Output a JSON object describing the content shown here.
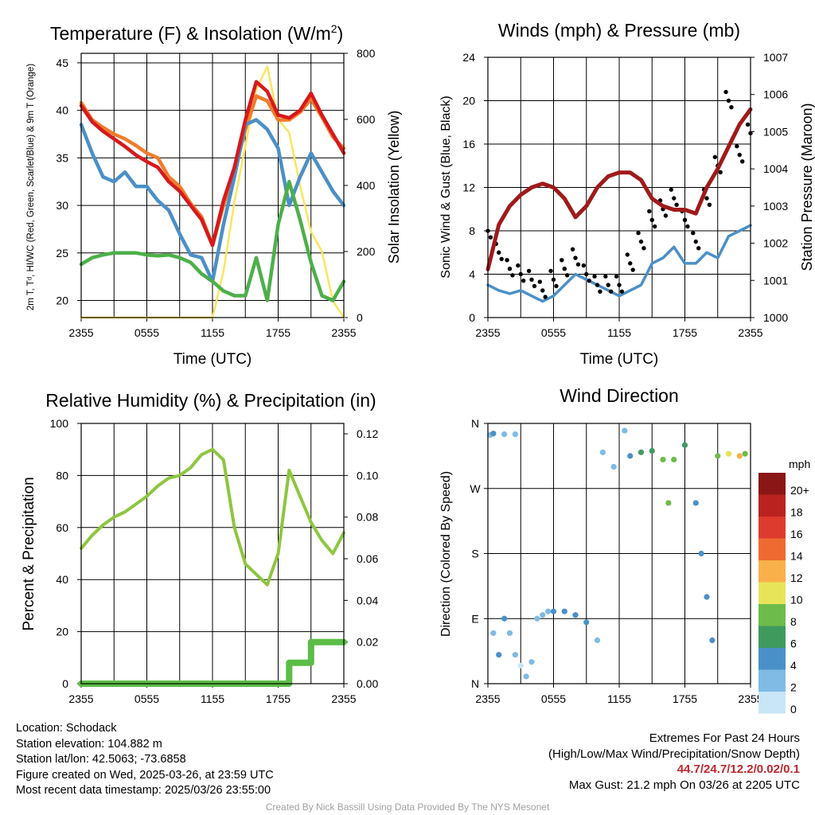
{
  "panels": {
    "temperature": {
      "title": "Temperature (F) & Insolation (W/m",
      "title_sup": "2",
      "title_close": ")",
      "ylabel_left": "2m T, Tᵈ, HI/WC (Red, Green, Scarlet/Blue) & 9m T (Orange)",
      "ylabel_right": "Solar Insolation (Yellow)",
      "xlabel": "Time (UTC)"
    },
    "winds": {
      "title": "Winds (mph) & Pressure (mb)",
      "ylabel_left": "Sonic Wind & Gust (Blue, Black)",
      "ylabel_right": "Station Pressure (Maroon)",
      "xlabel": "Time (UTC)"
    },
    "humidity": {
      "title": "Relative Humidity (%) & Precipitation (in)",
      "ylabel_left": "Percent & Precipitation"
    },
    "direction": {
      "title": "Wind Direction",
      "ylabel_left": "Direction (Colored By Speed)",
      "legend_title": "mph"
    }
  },
  "colors": {
    "temp_2m": "#d7191c",
    "temp_9m": "#f07c2a",
    "dewpoint": "#4daf4a",
    "heat_index_wind_chill": "#4a90c8",
    "solar": "#fde55c",
    "wind": "#4a90c8",
    "gust": "#000000",
    "pressure": "#a01a1a",
    "humidity": "#8dc63f",
    "precipitation": "#5bbd46"
  },
  "footer": {
    "location": "Location: Schodack",
    "elevation": "Station elevation: 104.882 m",
    "latlon": "Station lat/lon: 42.5063; -73.6858",
    "created": "Figure created on Wed, 2025-03-26, at 23:59 UTC",
    "recent": "Most recent data timestamp: 2025/03/26 23:55:00",
    "extremes_title": "Extremes For Past 24 Hours",
    "extremes_desc": "(High/Low/Max Wind/Precipitation/Snow Depth)",
    "extremes_values": "44.7/24.7/12.2/0.02/0.1",
    "max_gust": "Max Gust: 21.2 mph On 03/26 at 2205 UTC",
    "credit": "Created By Nick Bassill Using Data Provided By The NYS Mesonet"
  },
  "chart_data": [
    {
      "type": "line",
      "title": "Temperature (F) & Insolation (W/m2)",
      "xlabel": "Time (UTC)",
      "ylabel": "2m T, Td, HI/WC (Red, Green, Scarlet/Blue) & 9m T (Orange)",
      "ylabel_right": "Solar Insolation (Yellow)",
      "x_ticks": [
        "2355",
        "0555",
        "1155",
        "1755",
        "2355"
      ],
      "x_hours": [
        0,
        1,
        2,
        3,
        4,
        5,
        6,
        7,
        8,
        9,
        10,
        11,
        12,
        13,
        14,
        15,
        16,
        17,
        18,
        19,
        20,
        21,
        22,
        23,
        24
      ],
      "ylim": [
        18.2,
        46
      ],
      "y_ticks": [
        20,
        25,
        30,
        35,
        40,
        45
      ],
      "ylim_right": [
        0,
        800
      ],
      "y_ticks_right": [
        0,
        200,
        400,
        600,
        800
      ],
      "grid": true,
      "series": [
        {
          "name": "2m T",
          "axis": "left",
          "values": [
            40.5,
            38.8,
            37.8,
            37.0,
            36.2,
            35.3,
            34.6,
            34.0,
            32.5,
            31.5,
            30.0,
            28.5,
            25.8,
            30.5,
            34.0,
            39.0,
            43.0,
            42.0,
            39.5,
            39.2,
            40.0,
            41.8,
            39.5,
            37.5,
            35.5
          ]
        },
        {
          "name": "9m T",
          "axis": "left",
          "values": [
            40.8,
            39.0,
            38.2,
            37.5,
            37.0,
            36.3,
            35.5,
            35.0,
            33.0,
            32.0,
            30.2,
            28.8,
            25.8,
            30.0,
            33.5,
            38.0,
            41.5,
            41.0,
            39.0,
            39.0,
            39.8,
            41.2,
            39.3,
            37.2,
            36.0
          ]
        },
        {
          "name": "Td",
          "axis": "left",
          "values": [
            23.8,
            24.5,
            24.8,
            25.0,
            25.0,
            25.0,
            24.8,
            24.7,
            24.8,
            24.5,
            24.0,
            22.8,
            22.0,
            21.0,
            20.5,
            20.5,
            24.5,
            20.0,
            28.0,
            32.5,
            28.5,
            24.0,
            20.5,
            20.0,
            22.0
          ]
        },
        {
          "name": "HI/WC",
          "axis": "left",
          "values": [
            38.5,
            35.5,
            33.0,
            32.5,
            33.5,
            32.0,
            32.0,
            30.5,
            29.5,
            27.0,
            24.8,
            24.5,
            22.0,
            28.0,
            33.0,
            38.5,
            39.0,
            38.0,
            36.0,
            30.0,
            33.0,
            35.5,
            33.5,
            31.5,
            30.0
          ]
        },
        {
          "name": "Solar Insolation",
          "axis": "right",
          "values": [
            0,
            0,
            0,
            0,
            0,
            0,
            0,
            0,
            0,
            0,
            0,
            0,
            0,
            140,
            350,
            520,
            690,
            760,
            600,
            560,
            400,
            260,
            200,
            50,
            0
          ]
        }
      ]
    },
    {
      "type": "line",
      "title": "Winds (mph) & Pressure (mb)",
      "xlabel": "Time (UTC)",
      "ylabel": "Sonic Wind & Gust (Blue, Black)",
      "ylabel_right": "Station Pressure (Maroon)",
      "x_ticks": [
        "2355",
        "0555",
        "1155",
        "1755",
        "2355"
      ],
      "x_hours": [
        0,
        1,
        2,
        3,
        4,
        5,
        6,
        7,
        8,
        9,
        10,
        11,
        12,
        13,
        14,
        15,
        16,
        17,
        18,
        19,
        20,
        21,
        22,
        23,
        24
      ],
      "ylim": [
        0,
        24
      ],
      "y_ticks": [
        0,
        4,
        8,
        12,
        16,
        20,
        24
      ],
      "ylim_right": [
        1000,
        1007
      ],
      "y_ticks_right": [
        1000,
        1001,
        1002,
        1003,
        1004,
        1005,
        1006,
        1007
      ],
      "grid": true,
      "series": [
        {
          "name": "Sonic Wind",
          "axis": "left",
          "values": [
            3.0,
            2.5,
            2.2,
            2.5,
            2.0,
            1.5,
            2.0,
            3.0,
            4.0,
            3.5,
            3.0,
            2.5,
            2.0,
            2.5,
            3.0,
            5.0,
            5.5,
            6.5,
            5.0,
            5.0,
            6.0,
            5.5,
            7.5,
            8.0,
            8.5
          ]
        },
        {
          "name": "Gust",
          "axis": "left",
          "values": [
            8.0,
            6.0,
            4.5,
            4.0,
            3.5,
            2.5,
            3.5,
            4.5,
            5.5,
            4.0,
            3.0,
            3.0,
            3.0,
            5.0,
            7.0,
            9.0,
            10.0,
            11.0,
            9.0,
            7.0,
            11.0,
            14.0,
            20.0,
            15.0,
            17.0
          ]
        },
        {
          "name": "Station Pressure",
          "axis": "right",
          "values": [
            1001.3,
            1002.5,
            1003.0,
            1003.3,
            1003.5,
            1003.6,
            1003.5,
            1003.2,
            1002.7,
            1003.0,
            1003.5,
            1003.8,
            1003.9,
            1003.9,
            1003.7,
            1003.2,
            1003.0,
            1002.9,
            1002.9,
            1002.8,
            1003.5,
            1004.0,
            1004.6,
            1005.2,
            1005.6
          ]
        }
      ]
    },
    {
      "type": "line",
      "title": "Relative Humidity (%) & Precipitation (in)",
      "ylabel": "Percent & Precipitation",
      "x_ticks": [
        "2355",
        "0555",
        "1155",
        "1755",
        "2355"
      ],
      "x_hours": [
        0,
        1,
        2,
        3,
        4,
        5,
        6,
        7,
        8,
        9,
        10,
        11,
        12,
        13,
        14,
        15,
        16,
        17,
        18,
        19,
        20,
        21,
        22,
        23,
        24
      ],
      "ylim": [
        0,
        100
      ],
      "y_ticks": [
        0,
        20,
        40,
        60,
        80,
        100
      ],
      "ylim_right": [
        0,
        0.125
      ],
      "y_ticks_right": [
        0.0,
        0.02,
        0.04,
        0.06,
        0.08,
        0.1,
        0.12
      ],
      "grid": true,
      "series": [
        {
          "name": "Relative Humidity",
          "axis": "left",
          "values": [
            52,
            57,
            61,
            64,
            66,
            69,
            72,
            76,
            79,
            80,
            83,
            88,
            90,
            86,
            60,
            46,
            42,
            38,
            50,
            82,
            72,
            62,
            55,
            50,
            58
          ]
        },
        {
          "name": "Precipitation",
          "axis": "right",
          "values": [
            0,
            0,
            0,
            0,
            0,
            0,
            0,
            0,
            0,
            0,
            0,
            0,
            0,
            0,
            0,
            0,
            0,
            0,
            0,
            0.01,
            0.01,
            0.02,
            0.02,
            0.02,
            0.02
          ]
        }
      ]
    },
    {
      "type": "scatter",
      "title": "Wind Direction",
      "ylabel": "Direction (Colored By Speed)",
      "x_ticks": [
        "2355",
        "0555",
        "1155",
        "1755",
        "2355"
      ],
      "y_ticks": [
        "N",
        "E",
        "S",
        "W",
        "N"
      ],
      "y_degrees": [
        0,
        90,
        180,
        270,
        360
      ],
      "ylim": [
        0,
        360
      ],
      "grid": true,
      "colorbar": {
        "title": "mph",
        "labels": [
          "0",
          "2",
          "4",
          "6",
          "8",
          "10",
          "12",
          "14",
          "16",
          "18",
          "20+"
        ],
        "colors": [
          "#c8e6f7",
          "#7fbbe4",
          "#4a90c8",
          "#3f9a5e",
          "#6dbb4a",
          "#e7e45a",
          "#f9b04a",
          "#ef6a30",
          "#dc3b2d",
          "#b9221f",
          "#8b1616"
        ]
      },
      "points": [
        {
          "x": 0.2,
          "y": 344,
          "speed": 2
        },
        {
          "x": 0.5,
          "y": 346,
          "speed": 3
        },
        {
          "x": 1.5,
          "y": 345,
          "speed": 1
        },
        {
          "x": 2.5,
          "y": 345,
          "speed": 2
        },
        {
          "x": 0.5,
          "y": 70,
          "speed": 2
        },
        {
          "x": 1.0,
          "y": 40,
          "speed": 3
        },
        {
          "x": 1.5,
          "y": 90,
          "speed": 3
        },
        {
          "x": 2.0,
          "y": 70,
          "speed": 2
        },
        {
          "x": 2.5,
          "y": 40,
          "speed": 1
        },
        {
          "x": 3.0,
          "y": 25,
          "speed": 0
        },
        {
          "x": 3.5,
          "y": 10,
          "speed": 1
        },
        {
          "x": 4.0,
          "y": 30,
          "speed": 2
        },
        {
          "x": 4.5,
          "y": 90,
          "speed": 2
        },
        {
          "x": 5.0,
          "y": 95,
          "speed": 1
        },
        {
          "x": 5.5,
          "y": 100,
          "speed": 2
        },
        {
          "x": 6.0,
          "y": 100,
          "speed": 3
        },
        {
          "x": 7.0,
          "y": 100,
          "speed": 4
        },
        {
          "x": 8.0,
          "y": 95,
          "speed": 4
        },
        {
          "x": 9.0,
          "y": 85,
          "speed": 3
        },
        {
          "x": 10.0,
          "y": 60,
          "speed": 2
        },
        {
          "x": 10.5,
          "y": 320,
          "speed": 1
        },
        {
          "x": 11.5,
          "y": 300,
          "speed": 1
        },
        {
          "x": 12.5,
          "y": 350,
          "speed": 2
        },
        {
          "x": 13.0,
          "y": 315,
          "speed": 4
        },
        {
          "x": 14.0,
          "y": 320,
          "speed": 5
        },
        {
          "x": 15.0,
          "y": 322,
          "speed": 5
        },
        {
          "x": 16.0,
          "y": 310,
          "speed": 8
        },
        {
          "x": 16.5,
          "y": 250,
          "speed": 7
        },
        {
          "x": 17.0,
          "y": 310,
          "speed": 7
        },
        {
          "x": 18.0,
          "y": 330,
          "speed": 6
        },
        {
          "x": 19.0,
          "y": 250,
          "speed": 3
        },
        {
          "x": 19.5,
          "y": 180,
          "speed": 4
        },
        {
          "x": 20.0,
          "y": 120,
          "speed": 3
        },
        {
          "x": 20.5,
          "y": 60,
          "speed": 3
        },
        {
          "x": 21.0,
          "y": 315,
          "speed": 8
        },
        {
          "x": 22.0,
          "y": 318,
          "speed": 10
        },
        {
          "x": 23.0,
          "y": 315,
          "speed": 12
        },
        {
          "x": 23.5,
          "y": 318,
          "speed": 8
        }
      ]
    }
  ]
}
